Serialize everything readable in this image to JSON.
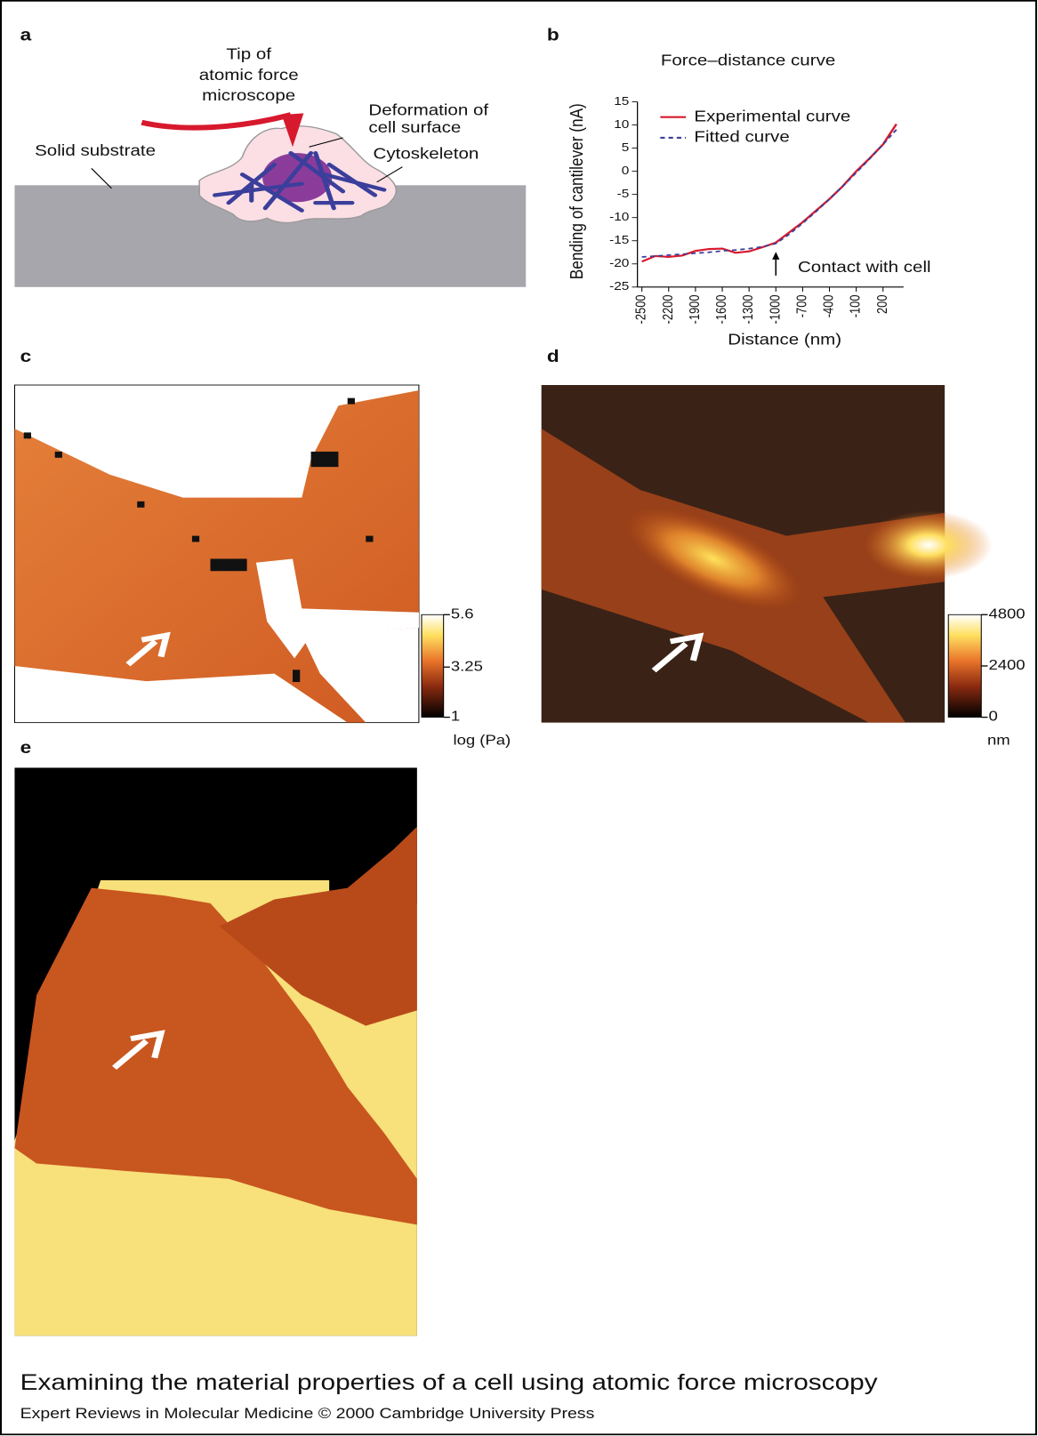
{
  "panels": {
    "a": {
      "label": "a",
      "tip_label": [
        "Tip of",
        "atomic force",
        "microscope"
      ],
      "deformation_label": [
        "Deformation of",
        "cell surface"
      ],
      "substrate_label": "Solid substrate",
      "cytoskeleton_label": "Cytoskeleton"
    },
    "b": {
      "label": "b"
    },
    "c": {
      "label": "c",
      "colorbar": {
        "lim": [
          1,
          5.6
        ],
        "ticks": [
          1,
          3.25,
          5.6
        ],
        "unit": "log (Pa)"
      }
    },
    "d": {
      "label": "d",
      "colorbar": {
        "lim": [
          0,
          4800
        ],
        "ticks": [
          0,
          2400,
          4800
        ],
        "unit": "nm"
      }
    },
    "e": {
      "label": "e"
    }
  },
  "chart_data": {
    "type": "line",
    "title": "Force–distance curve",
    "xlabel": "Distance (nm)",
    "ylabel": "Bending of cantilever (nA)",
    "x": [
      -2500,
      -2350,
      -2200,
      -2050,
      -1900,
      -1750,
      -1600,
      -1450,
      -1300,
      -1150,
      -1000,
      -850,
      -700,
      -550,
      -400,
      -250,
      -100,
      50,
      200,
      350
    ],
    "series": [
      {
        "name": "Experimental curve",
        "color": "#d7192d",
        "linestyle": "solid",
        "values": [
          -19.5,
          -18.3,
          -18.5,
          -18.2,
          -17.2,
          -16.8,
          -16.7,
          -17.6,
          -17.3,
          -16.4,
          -15.4,
          -13.2,
          -11,
          -8.5,
          -6,
          -3.2,
          0,
          2.8,
          5.8,
          10.2
        ]
      },
      {
        "name": "Fitted curve",
        "color": "#3a3f9c",
        "linestyle": "dashed",
        "values": [
          -18.5,
          -18.3,
          -18.1,
          -17.9,
          -17.7,
          -17.5,
          -17.2,
          -17,
          -16.7,
          -16.3,
          -15.6,
          -13.6,
          -11.2,
          -8.7,
          -6,
          -3.2,
          -0.3,
          2.7,
          5.8,
          9
        ]
      }
    ],
    "xlim": [
      -2550,
      430
    ],
    "ylim": [
      -25,
      15
    ],
    "xticks": [
      -2500,
      -2200,
      -1900,
      -1600,
      -1300,
      -1000,
      -700,
      -400,
      -100,
      200
    ],
    "yticks": [
      -25,
      -20,
      -15,
      -10,
      -5,
      0,
      5,
      10,
      15
    ],
    "legend": "upper left",
    "annotation": {
      "text": "Contact with cell",
      "x": -1000
    }
  },
  "caption": {
    "title": "Examining the material properties of a cell using atomic force microscopy",
    "credit": "Expert Reviews in Molecular Medicine © 2000 Cambridge University Press"
  }
}
